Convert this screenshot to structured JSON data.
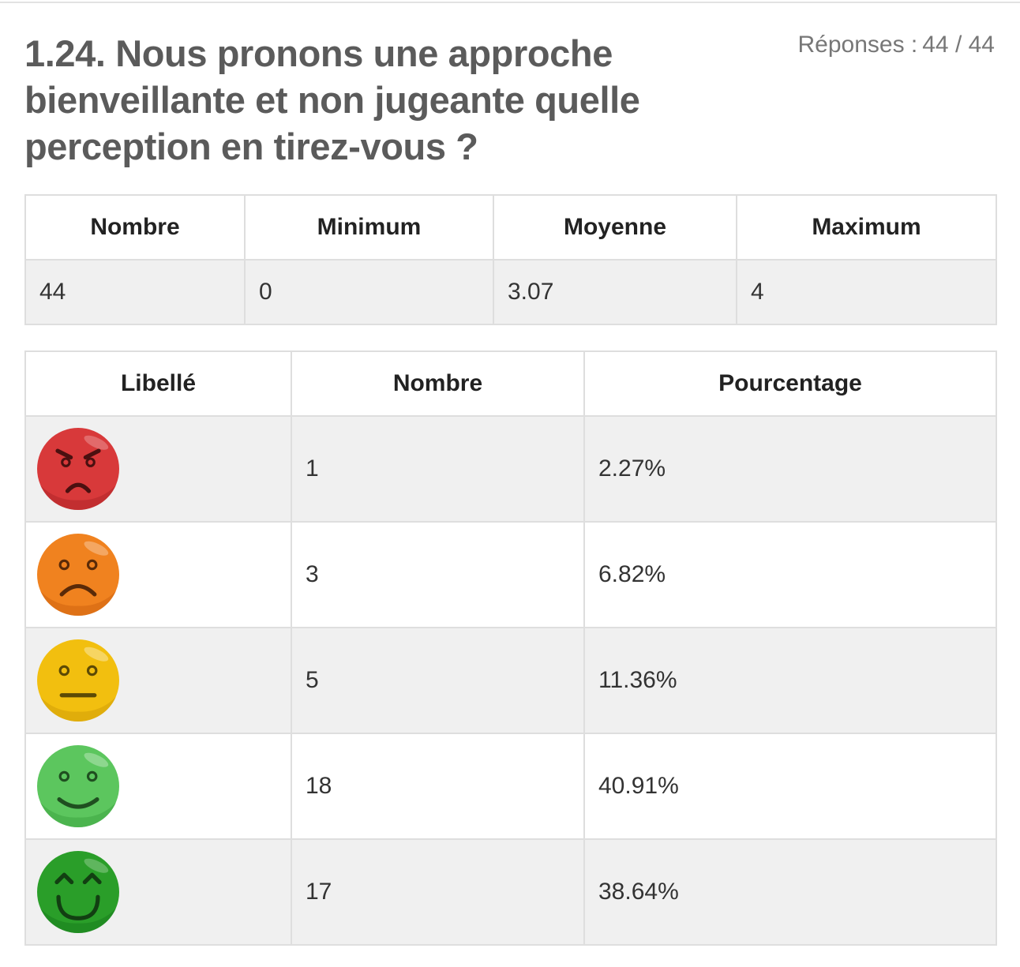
{
  "question": {
    "title": "1.24. Nous pronons une approche bienveillante et non jugeante quelle perception en tirez-vous ?",
    "responses_label": "Réponses :",
    "responses_value": "44 / 44"
  },
  "stats": {
    "headers": [
      "Nombre",
      "Minimum",
      "Moyenne",
      "Maximum"
    ],
    "values": [
      "44",
      "0",
      "3.07",
      "4"
    ]
  },
  "distribution": {
    "headers": [
      "Libellé",
      "Nombre",
      "Pourcentage"
    ],
    "rows": [
      {
        "icon": "angry-face-icon",
        "color": "#d8393a",
        "count": "1",
        "percent": "2.27%"
      },
      {
        "icon": "sad-face-icon",
        "color": "#f0821f",
        "count": "3",
        "percent": "6.82%"
      },
      {
        "icon": "neutral-face-icon",
        "color": "#f2bf0f",
        "count": "5",
        "percent": "11.36%"
      },
      {
        "icon": "smiling-face-icon",
        "color": "#5cc65e",
        "count": "18",
        "percent": "40.91%"
      },
      {
        "icon": "grinning-face-icon",
        "color": "#2a9e29",
        "count": "17",
        "percent": "38.64%"
      }
    ]
  }
}
